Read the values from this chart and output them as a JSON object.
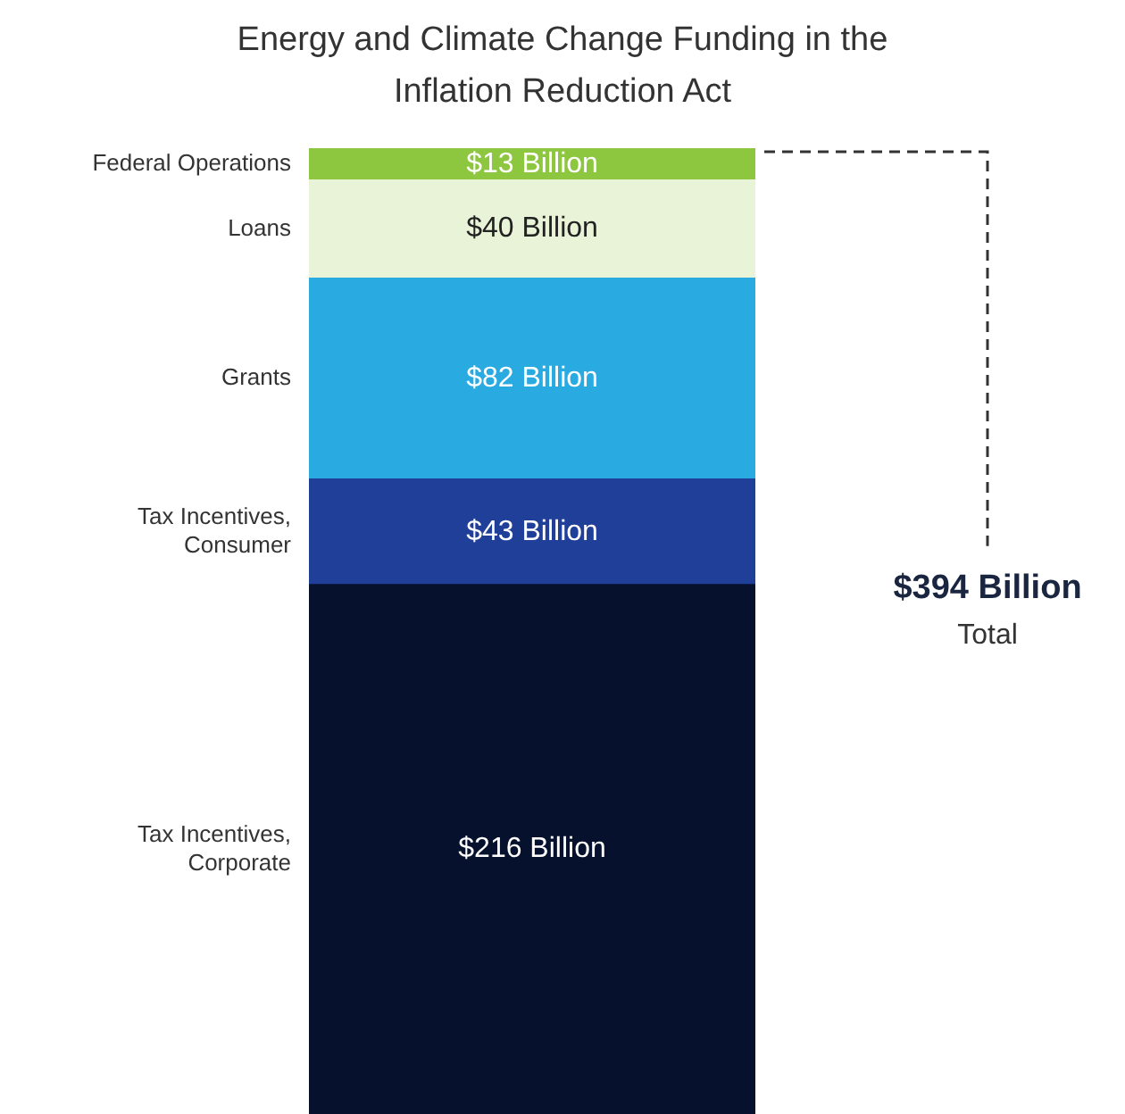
{
  "chart_data": {
    "type": "bar",
    "title": "Energy and Climate Change Funding in the Inflation Reduction Act",
    "categories": [
      null
    ],
    "stacked": true,
    "tick_labels": false,
    "ylim": [
      0,
      394
    ],
    "series": [
      {
        "name": "Tax Incentives, Corporate",
        "color": "#06122d",
        "values": [
          216
        ],
        "value_labels": [
          "$216 Billion"
        ]
      },
      {
        "name": "Tax Incentives, Consumer",
        "color": "#1f3f99",
        "values": [
          43
        ],
        "value_labels": [
          "$43 Billion"
        ]
      },
      {
        "name": "Grants",
        "color": "#29abe2",
        "values": [
          82
        ],
        "value_labels": [
          "$82 Billion"
        ]
      },
      {
        "name": "Loans",
        "color": "#e8f3d8",
        "values": [
          40
        ],
        "value_labels": [
          "$40 Billion"
        ]
      },
      {
        "name": "Federal Operations",
        "color": "#8dc63f",
        "values": [
          13
        ],
        "value_labels": [
          "$13 Billion"
        ]
      }
    ],
    "annotations": [
      "$394 Billion",
      "Total"
    ]
  }
}
